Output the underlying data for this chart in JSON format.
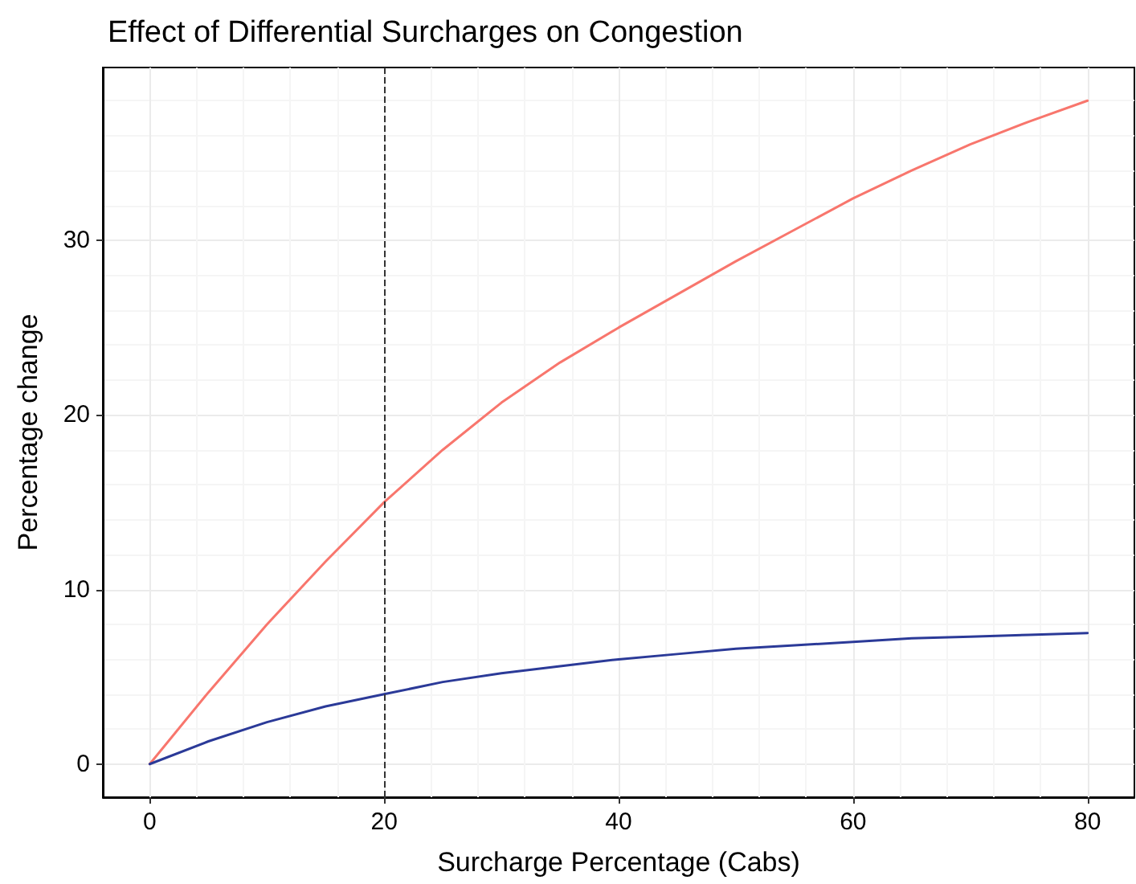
{
  "chart_data": {
    "type": "line",
    "title": "Effect of Differential Surcharges on Congestion",
    "xlabel": "Surcharge Percentage (Cabs)",
    "ylabel": "Percentage change",
    "x": [
      0,
      5,
      10,
      15,
      20,
      25,
      30,
      35,
      40,
      45,
      50,
      55,
      60,
      65,
      70,
      75,
      80
    ],
    "series": [
      {
        "color": "#f8766d",
        "values": [
          0,
          4.1,
          8.0,
          11.6,
          15.0,
          18.0,
          20.7,
          23.0,
          25.0,
          26.9,
          28.8,
          30.6,
          32.4,
          34.0,
          35.5,
          36.8,
          38.0
        ]
      },
      {
        "color": "#2b3a98",
        "values": [
          0,
          1.3,
          2.4,
          3.3,
          4.0,
          4.7,
          5.2,
          5.6,
          6.0,
          6.3,
          6.6,
          6.8,
          7.0,
          7.2,
          7.3,
          7.4,
          7.5
        ]
      }
    ],
    "xlim": [
      -4,
      84
    ],
    "xticks": [
      0,
      20,
      40,
      60,
      80
    ],
    "ylim": [
      -1.9,
      39.9
    ],
    "yticks": [
      0,
      10,
      20,
      30
    ],
    "ref_lines": [
      {
        "axis": "x",
        "value": 20,
        "color": "#333333",
        "line_style": "dashed"
      }
    ],
    "grid": true,
    "marker": "none",
    "line_style": "solid"
  }
}
